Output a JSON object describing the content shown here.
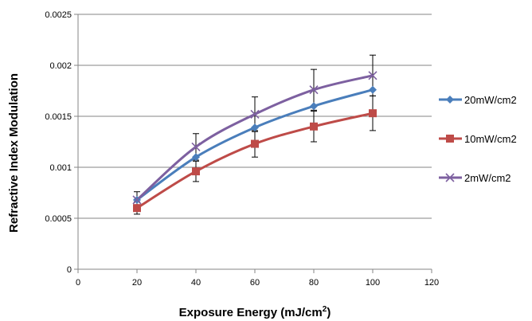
{
  "chart_data": {
    "type": "line",
    "xlabel": "Exposure Energy (mJ/cm",
    "xlabel_sup": "2",
    "xlabel_end": ")",
    "ylabel": "Refractive Index Modulation",
    "xlim": [
      0,
      120
    ],
    "ylim": [
      0,
      0.0025
    ],
    "x_ticks": [
      "0",
      "20",
      "40",
      "60",
      "80",
      "100",
      "120"
    ],
    "y_ticks": [
      "0",
      "0.0005",
      "0.001",
      "0.0015",
      "0.002",
      "0.0025"
    ],
    "grid": "horizontal",
    "legend_position": "right",
    "x": [
      20,
      40,
      60,
      80,
      100
    ],
    "series": [
      {
        "name": "20mW/cm2",
        "color": "#4a7ebb",
        "marker": "diamond",
        "values": [
          0.00068,
          0.0011,
          0.00139,
          0.0016,
          0.00176
        ]
      },
      {
        "name": "10mW/cm2",
        "color": "#be4b48",
        "marker": "square",
        "values": [
          0.0006,
          0.00096,
          0.00123,
          0.0014,
          0.00153
        ],
        "error": [
          6e-05,
          0.0001,
          0.00013,
          0.00015,
          0.00017
        ]
      },
      {
        "name": "2mW/cm2",
        "color": "#7d60a0",
        "marker": "x",
        "values": [
          0.00068,
          0.0012,
          0.00152,
          0.00176,
          0.0019
        ],
        "error": [
          8e-05,
          0.00013,
          0.00017,
          0.0002,
          0.0002
        ]
      }
    ]
  }
}
